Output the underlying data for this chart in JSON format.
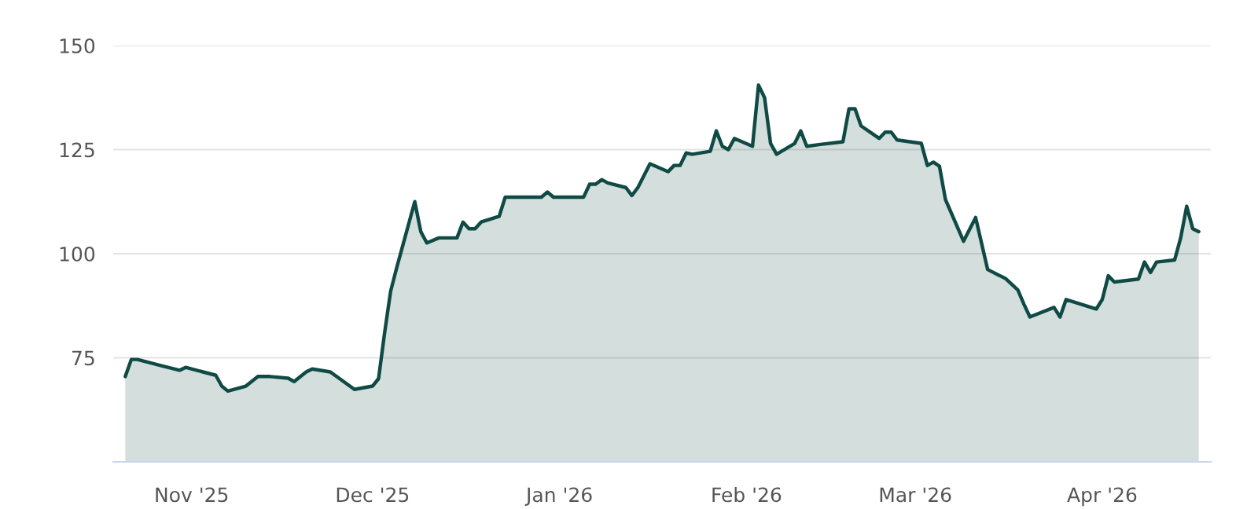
{
  "chart_data": {
    "type": "area",
    "color": "#0f4a44",
    "x": [
      "2025-10-21",
      "2025-10-22",
      "2025-10-23",
      "2025-10-27",
      "2025-10-30",
      "2025-10-31",
      "2025-11-05",
      "2025-11-06",
      "2025-11-07",
      "2025-11-10",
      "2025-11-12",
      "2025-11-14",
      "2025-11-17",
      "2025-11-18",
      "2025-11-20",
      "2025-11-21",
      "2025-11-24",
      "2025-11-28",
      "2025-12-01",
      "2025-12-02",
      "2025-12-03",
      "2025-12-04",
      "2025-12-05",
      "2025-12-08",
      "2025-12-09",
      "2025-12-10",
      "2025-12-12",
      "2025-12-15",
      "2025-12-16",
      "2025-12-17",
      "2025-12-18",
      "2025-12-19",
      "2025-12-22",
      "2025-12-23",
      "2025-12-29",
      "2025-12-30",
      "2025-12-31",
      "2026-01-02",
      "2026-01-05",
      "2026-01-06",
      "2026-01-07",
      "2026-01-08",
      "2026-01-09",
      "2026-01-12",
      "2026-01-13",
      "2026-01-14",
      "2026-01-16",
      "2026-01-19",
      "2026-01-20",
      "2026-01-21",
      "2026-01-22",
      "2026-01-23",
      "2026-01-26",
      "2026-01-27",
      "2026-01-28",
      "2026-01-29",
      "2026-01-30",
      "2026-02-02",
      "2026-02-03",
      "2026-02-04",
      "2026-02-05",
      "2026-02-06",
      "2026-02-09",
      "2026-02-10",
      "2026-02-11",
      "2026-02-13",
      "2026-02-17",
      "2026-02-18",
      "2026-02-19",
      "2026-02-20",
      "2026-02-23",
      "2026-02-24",
      "2026-02-25",
      "2026-02-26",
      "2026-03-02",
      "2026-03-03",
      "2026-03-04",
      "2026-03-05",
      "2026-03-06",
      "2026-03-09",
      "2026-03-11",
      "2026-03-13",
      "2026-03-16",
      "2026-03-18",
      "2026-03-19",
      "2026-03-20",
      "2026-03-24",
      "2026-03-25",
      "2026-03-26",
      "2026-03-31",
      "2026-04-01",
      "2026-04-02",
      "2026-04-03",
      "2026-04-07",
      "2026-04-08",
      "2026-04-09",
      "2026-04-10",
      "2026-04-13",
      "2026-04-14",
      "2026-04-15",
      "2026-04-16",
      "2026-04-17"
    ],
    "values": [
      70.5,
      74.6,
      74.6,
      73.1,
      72,
      72.7,
      70.8,
      68.2,
      67,
      68.2,
      70.5,
      70.5,
      70.1,
      69.3,
      71.6,
      72.3,
      71.6,
      67.4,
      68.2,
      70,
      81,
      91,
      96.6,
      112.5,
      105.3,
      102.6,
      103.8,
      103.8,
      107.6,
      106,
      106,
      107.6,
      109,
      113.6,
      113.6,
      114.8,
      113.6,
      113.6,
      113.6,
      116.7,
      116.7,
      117.8,
      117,
      115.9,
      114,
      115.9,
      121.6,
      119.7,
      121.2,
      121.2,
      124.2,
      123.9,
      124.6,
      129.5,
      125.8,
      125,
      127.7,
      125.8,
      140.5,
      137.5,
      126.5,
      123.9,
      126.5,
      129.5,
      125.8,
      126.2,
      126.9,
      134.8,
      134.8,
      130.7,
      127.7,
      129.2,
      129.2,
      127.3,
      126.5,
      121.2,
      122,
      121,
      113,
      103,
      108.7,
      96.2,
      94,
      91.3,
      87.9,
      84.8,
      87.1,
      84.8,
      89,
      86.7,
      89,
      94.7,
      93.2,
      93.9,
      98,
      95.5,
      98,
      98.5,
      103.8,
      111.4,
      106,
      105.3
    ],
    "xlim": [
      "2025-10-19",
      "2026-04-19"
    ],
    "xticks": [
      {
        "value": "2025-11-01",
        "label": "Nov '25"
      },
      {
        "value": "2025-12-01",
        "label": "Dec '25"
      },
      {
        "value": "2026-01-01",
        "label": "Jan '26"
      },
      {
        "value": "2026-02-01",
        "label": "Feb '26"
      },
      {
        "value": "2026-03-01",
        "label": "Mar '26"
      },
      {
        "value": "2026-04-01",
        "label": "Apr '26"
      }
    ],
    "ylim": [
      50,
      150
    ],
    "yticks": [
      75,
      100,
      125,
      150
    ],
    "grid": "y",
    "line_style": "solid",
    "marker": "none"
  }
}
